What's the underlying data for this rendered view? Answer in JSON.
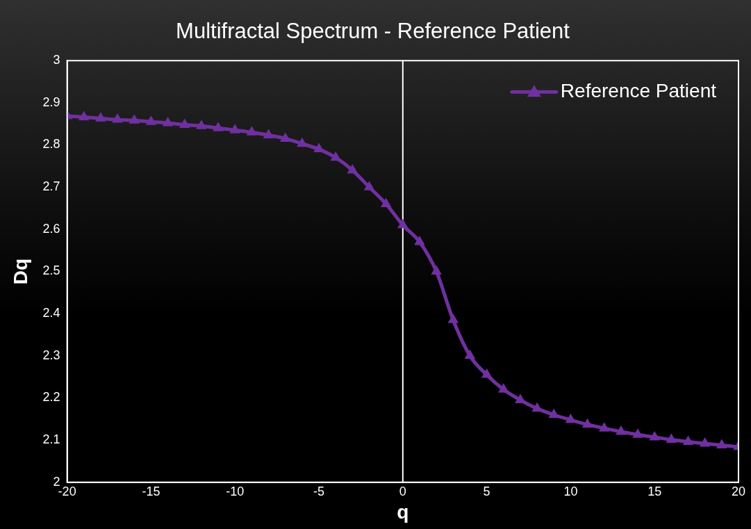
{
  "chart_data": {
    "type": "line",
    "title": "Multifractal Spectrum - Reference Patient",
    "xlabel": "q",
    "ylabel": "Dq",
    "x": [
      -20,
      -19,
      -18,
      -17,
      -16,
      -15,
      -14,
      -13,
      -12,
      -11,
      -10,
      -9,
      -8,
      -7,
      -6,
      -5,
      -4,
      -3,
      -2,
      -1,
      0,
      1,
      2,
      3,
      4,
      5,
      6,
      7,
      8,
      9,
      10,
      11,
      12,
      13,
      14,
      15,
      16,
      17,
      18,
      19,
      20
    ],
    "series": [
      {
        "name": "Reference Patient",
        "color": "#7030a0",
        "values": [
          2.869,
          2.866,
          2.863,
          2.86,
          2.858,
          2.855,
          2.852,
          2.848,
          2.845,
          2.84,
          2.835,
          2.83,
          2.823,
          2.815,
          2.803,
          2.79,
          2.77,
          2.74,
          2.7,
          2.66,
          2.61,
          2.57,
          2.5,
          2.385,
          2.3,
          2.255,
          2.22,
          2.195,
          2.175,
          2.16,
          2.148,
          2.137,
          2.128,
          2.12,
          2.113,
          2.107,
          2.101,
          2.096,
          2.092,
          2.088,
          2.084
        ]
      }
    ],
    "xlim": [
      -20,
      20
    ],
    "xticks": [
      -20,
      -15,
      -10,
      -5,
      0,
      5,
      10,
      15,
      20
    ],
    "ylim": [
      2,
      3
    ],
    "yticks": [
      2,
      2.1,
      2.2,
      2.3,
      2.4,
      2.5,
      2.6,
      2.7,
      2.8,
      2.9,
      3
    ],
    "ref_lines": [
      {
        "axis": "x",
        "value": 0,
        "color": "#ffffff"
      }
    ],
    "grid": false,
    "legend": "top right",
    "marker": "triangle",
    "line_style": "solid"
  }
}
